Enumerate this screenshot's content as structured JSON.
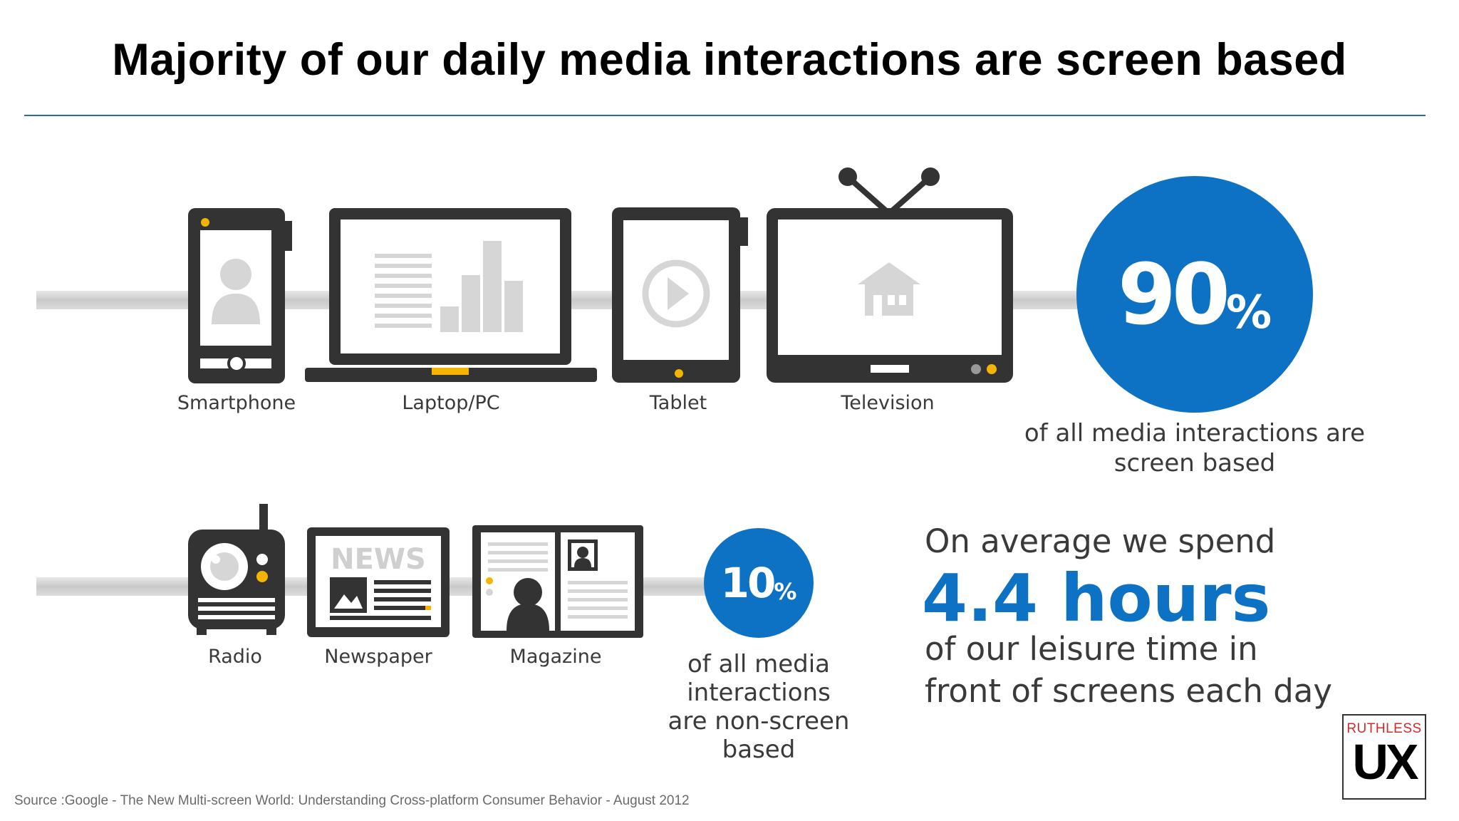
{
  "title": "Majority of our daily media interactions are screen based",
  "screen_devices": [
    {
      "label": "Smartphone",
      "icon": "smartphone-icon"
    },
    {
      "label": "Laptop/PC",
      "icon": "laptop-icon"
    },
    {
      "label": "Tablet",
      "icon": "tablet-icon"
    },
    {
      "label": "Television",
      "icon": "television-icon"
    }
  ],
  "non_screen_devices": [
    {
      "label": "Radio",
      "icon": "radio-icon"
    },
    {
      "label": "Newspaper",
      "icon": "newspaper-icon"
    },
    {
      "label": "Magazine",
      "icon": "magazine-icon"
    }
  ],
  "screen_stat": {
    "value": "90",
    "unit": "%",
    "caption_line1": "of all media interactions are",
    "caption_line2": "screen based"
  },
  "non_screen_stat": {
    "value": "10",
    "unit": "%",
    "caption_lines": [
      "of all media",
      "interactions",
      "are non-screen",
      "based"
    ]
  },
  "spend": {
    "line1": "On average we spend",
    "hours": "4.4 hours",
    "line2": "of our leisure time in",
    "line3": "front of screens each day"
  },
  "newspaper_masthead": "NEWS",
  "source": "Source :Google -  The New Multi-screen World: Understanding Cross-platform Consumer Behavior - August 2012",
  "logo": {
    "top": "RUTHLESS",
    "bottom": "UX"
  },
  "colors": {
    "accent_blue": "#0d72c4",
    "icon_dark": "#333333",
    "icon_light": "#d6d6d6",
    "highlight_yellow": "#f5b400",
    "rule": "#2a6aa8",
    "logo_red": "#d42a2a"
  }
}
